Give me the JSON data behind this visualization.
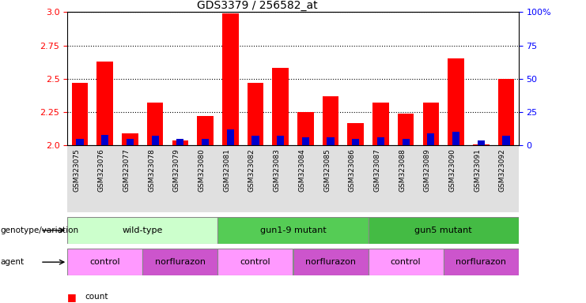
{
  "title": "GDS3379 / 256582_at",
  "samples": [
    "GSM323075",
    "GSM323076",
    "GSM323077",
    "GSM323078",
    "GSM323079",
    "GSM323080",
    "GSM323081",
    "GSM323082",
    "GSM323083",
    "GSM323084",
    "GSM323085",
    "GSM323086",
    "GSM323087",
    "GSM323088",
    "GSM323089",
    "GSM323090",
    "GSM323091",
    "GSM323092"
  ],
  "count_values": [
    2.47,
    2.63,
    2.09,
    2.32,
    2.04,
    2.22,
    2.99,
    2.47,
    2.58,
    2.25,
    2.37,
    2.17,
    2.32,
    2.24,
    2.32,
    2.65,
    2.01,
    2.5
  ],
  "percentile_values": [
    5,
    8,
    5,
    7,
    5,
    5,
    12,
    7,
    7,
    6,
    6,
    5,
    6,
    5,
    9,
    10,
    4,
    7
  ],
  "ylim_left": [
    2.0,
    3.0
  ],
  "ylim_right": [
    0,
    100
  ],
  "yticks_left": [
    2.0,
    2.25,
    2.5,
    2.75,
    3.0
  ],
  "yticks_right": [
    0,
    25,
    50,
    75,
    100
  ],
  "bar_color_count": "#ff0000",
  "bar_color_percentile": "#0000cc",
  "genotype_groups": [
    {
      "label": "wild-type",
      "start": 0,
      "end": 6,
      "color": "#ccffcc"
    },
    {
      "label": "gun1-9 mutant",
      "start": 6,
      "end": 12,
      "color": "#55cc55"
    },
    {
      "label": "gun5 mutant",
      "start": 12,
      "end": 18,
      "color": "#44bb44"
    }
  ],
  "agent_groups": [
    {
      "label": "control",
      "start": 0,
      "end": 3,
      "color": "#ff99ff"
    },
    {
      "label": "norflurazon",
      "start": 3,
      "end": 6,
      "color": "#cc55cc"
    },
    {
      "label": "control",
      "start": 6,
      "end": 9,
      "color": "#ff99ff"
    },
    {
      "label": "norflurazon",
      "start": 9,
      "end": 12,
      "color": "#cc55cc"
    },
    {
      "label": "control",
      "start": 12,
      "end": 15,
      "color": "#ff99ff"
    },
    {
      "label": "norflurazon",
      "start": 15,
      "end": 18,
      "color": "#cc55cc"
    }
  ],
  "background_color": "#ffffff",
  "label_genotype": "genotype/variation",
  "label_agent": "agent"
}
